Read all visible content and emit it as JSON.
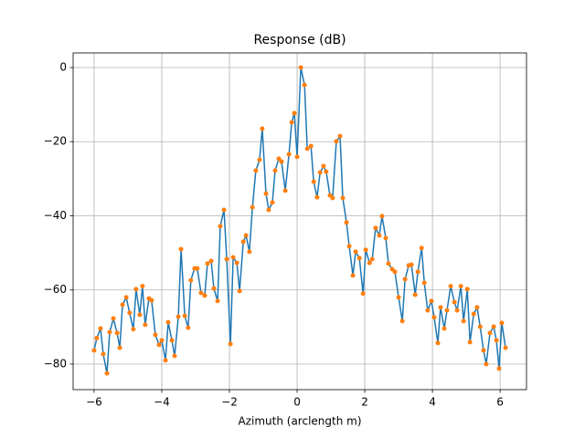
{
  "chart_data": {
    "type": "line",
    "title": "Response (dB)",
    "x_label": "Azimuth (arclength m)",
    "x": [
      -6.0,
      -5.92,
      -5.81,
      -5.73,
      -5.62,
      -5.54,
      -5.43,
      -5.32,
      -5.24,
      -5.16,
      -5.05,
      -4.95,
      -4.84,
      -4.76,
      -4.65,
      -4.57,
      -4.49,
      -4.38,
      -4.3,
      -4.19,
      -4.08,
      -4.0,
      -3.89,
      -3.81,
      -3.7,
      -3.62,
      -3.51,
      -3.43,
      -3.32,
      -3.22,
      -3.14,
      -3.03,
      -2.95,
      -2.84,
      -2.73,
      -2.65,
      -2.54,
      -2.46,
      -2.35,
      -2.27,
      -2.16,
      -2.08,
      -1.97,
      -1.89,
      -1.78,
      -1.7,
      -1.59,
      -1.51,
      -1.41,
      -1.32,
      -1.22,
      -1.11,
      -1.03,
      -0.92,
      -0.84,
      -0.73,
      -0.65,
      -0.54,
      -0.46,
      -0.35,
      -0.24,
      -0.16,
      -0.08,
      0.0,
      0.11,
      0.22,
      0.3,
      0.41,
      0.49,
      0.59,
      0.68,
      0.78,
      0.86,
      0.97,
      1.05,
      1.16,
      1.27,
      1.35,
      1.46,
      1.54,
      1.65,
      1.73,
      1.84,
      1.95,
      2.03,
      2.14,
      2.22,
      2.32,
      2.43,
      2.51,
      2.62,
      2.7,
      2.81,
      2.89,
      3.0,
      3.11,
      3.19,
      3.3,
      3.38,
      3.49,
      3.57,
      3.68,
      3.76,
      3.86,
      3.97,
      4.05,
      4.16,
      4.24,
      4.35,
      4.43,
      4.54,
      4.65,
      4.73,
      4.84,
      4.92,
      5.03,
      5.11,
      5.22,
      5.32,
      5.41,
      5.51,
      5.59,
      5.7,
      5.81,
      5.89,
      5.97,
      6.05,
      6.16
    ],
    "values": [
      -76.3,
      -73,
      -70.4,
      -77.3,
      -82.5,
      -71.4,
      -67.7,
      -71.6,
      -75.6,
      -64,
      -62,
      -66.2,
      -70.6,
      -59.8,
      -66.7,
      -59,
      -69.4,
      -62.3,
      -62.8,
      -72.1,
      -74.8,
      -73.6,
      -79,
      -68.7,
      -73.6,
      -77.8,
      -67.2,
      -49,
      -67,
      -70.2,
      -57.4,
      -54.2,
      -54.2,
      -60.8,
      -61.5,
      -52.9,
      -52.2,
      -59.6,
      -63,
      -42.8,
      -38.4,
      -51.7,
      -74.6,
      -51.2,
      -52.7,
      -60.3,
      -47,
      -45.3,
      -49.7,
      -37.7,
      -27.8,
      -24.9,
      -16.5,
      -34,
      -38.4,
      -36.4,
      -27.8,
      -24.6,
      -25.4,
      -33.2,
      -23.4,
      -14.8,
      -12.3,
      -24.1,
      0,
      -4.7,
      -21.9,
      -21.2,
      -30.8,
      -35,
      -28.3,
      -26.6,
      -28.1,
      -34.5,
      -35.2,
      -19.9,
      -18.5,
      -35.2,
      -41.8,
      -48.2,
      -56.1,
      -49.7,
      -51.4,
      -61,
      -49.2,
      -52.7,
      -51.7,
      -43.3,
      -45.3,
      -40.1,
      -46,
      -52.9,
      -54.4,
      -55.1,
      -62,
      -68.4,
      -57.1,
      -53.4,
      -53.2,
      -61.3,
      -55.1,
      -48.7,
      -58.1,
      -65.5,
      -63,
      -67.4,
      -74.3,
      -64.7,
      -70.4,
      -65.5,
      -59,
      -63.3,
      -65.5,
      -59,
      -68.4,
      -59.8,
      -74.1,
      -66.5,
      -64.7,
      -69.9,
      -76.3,
      -80,
      -71.6,
      -69.9,
      -73.6,
      -81.2,
      -68.9,
      -75.6
    ],
    "color": "#1f77b4",
    "marker_color": "#ff7f0e",
    "xlim": [
      -6.62,
      6.78
    ],
    "ylim": [
      -86.9,
      3.94
    ],
    "xticks": [
      {
        "value": -6,
        "label": "−6"
      },
      {
        "value": -4,
        "label": "−4"
      },
      {
        "value": -2,
        "label": "−2"
      },
      0,
      2,
      4,
      6
    ],
    "yticks": [
      {
        "value": -80,
        "label": "−80"
      },
      {
        "value": -60,
        "label": "−60"
      },
      {
        "value": -40,
        "label": "−40"
      },
      {
        "value": -20,
        "label": "−20"
      },
      0
    ],
    "grid": true
  }
}
